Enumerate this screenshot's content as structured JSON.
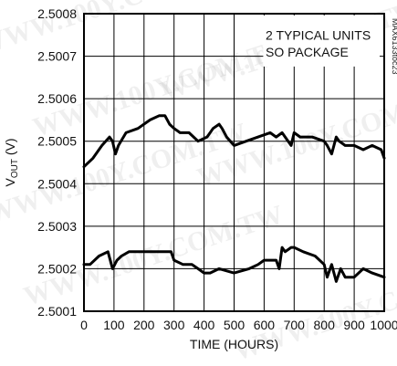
{
  "chart_data": {
    "type": "line",
    "title": "",
    "xlabel": "TIME (HOURS)",
    "ylabel_main": "V",
    "ylabel_sub": "OUT",
    "ylabel_unit": " (V)",
    "xlim": [
      0,
      1000
    ],
    "ylim": [
      2.5001,
      2.5008
    ],
    "x_ticks": [
      0,
      100,
      200,
      300,
      400,
      500,
      600,
      700,
      800,
      900,
      1000
    ],
    "x_tick_labels": [
      "0",
      "100",
      "200",
      "300",
      "400",
      "500",
      "600",
      "700",
      "800",
      "900",
      "1000"
    ],
    "y_ticks": [
      2.5001,
      2.5002,
      2.5003,
      2.5004,
      2.5005,
      2.5006,
      2.5007,
      2.5008
    ],
    "y_tick_labels": [
      "2.5001",
      "2.5002",
      "2.5003",
      "2.5004",
      "2.5005",
      "2.5006",
      "2.5007",
      "2.5008"
    ],
    "grid": true,
    "annotations": [
      "2 TYPICAL UNITS",
      "SO PACKAGE"
    ],
    "figure_id": "MAX6133toc23",
    "watermark": "WWW.100Y.COM.TW",
    "series": [
      {
        "x": [
          0,
          30,
          60,
          85,
          95,
          105,
          115,
          140,
          180,
          220,
          250,
          270,
          285,
          300,
          320,
          350,
          380,
          410,
          430,
          450,
          460,
          475,
          500,
          540,
          580,
          620,
          640,
          660,
          680,
          690,
          700,
          720,
          760,
          800,
          810,
          825,
          840,
          850,
          870,
          900,
          930,
          960,
          990,
          1000
        ],
        "y": [
          2.50044,
          2.50046,
          2.50049,
          2.50051,
          2.5005,
          2.50047,
          2.50049,
          2.50052,
          2.50053,
          2.50055,
          2.50056,
          2.50056,
          2.50054,
          2.50053,
          2.50052,
          2.50052,
          2.5005,
          2.50051,
          2.50053,
          2.50054,
          2.50053,
          2.50051,
          2.50049,
          2.5005,
          2.50051,
          2.50052,
          2.50051,
          2.50052,
          2.5005,
          2.50049,
          2.50052,
          2.50051,
          2.50051,
          2.5005,
          2.50049,
          2.50047,
          2.50051,
          2.5005,
          2.50049,
          2.50049,
          2.50048,
          2.50049,
          2.50048,
          2.50046
        ]
      },
      {
        "x": [
          0,
          20,
          50,
          80,
          95,
          110,
          125,
          150,
          200,
          250,
          290,
          300,
          330,
          360,
          380,
          400,
          420,
          450,
          500,
          550,
          580,
          600,
          620,
          640,
          650,
          660,
          670,
          690,
          700,
          730,
          770,
          800,
          810,
          825,
          840,
          855,
          870,
          900,
          930,
          960,
          1000
        ],
        "y": [
          2.50021,
          2.50021,
          2.50023,
          2.50024,
          2.5002,
          2.50022,
          2.50023,
          2.50024,
          2.50024,
          2.50024,
          2.50024,
          2.50022,
          2.50021,
          2.50021,
          2.5002,
          2.50019,
          2.50019,
          2.5002,
          2.50019,
          2.5002,
          2.50021,
          2.50022,
          2.50022,
          2.50022,
          2.5002,
          2.50025,
          2.50024,
          2.50025,
          2.50025,
          2.50024,
          2.50023,
          2.50021,
          2.50018,
          2.50021,
          2.50017,
          2.5002,
          2.50018,
          2.50018,
          2.5002,
          2.50019,
          2.50018
        ]
      }
    ]
  }
}
